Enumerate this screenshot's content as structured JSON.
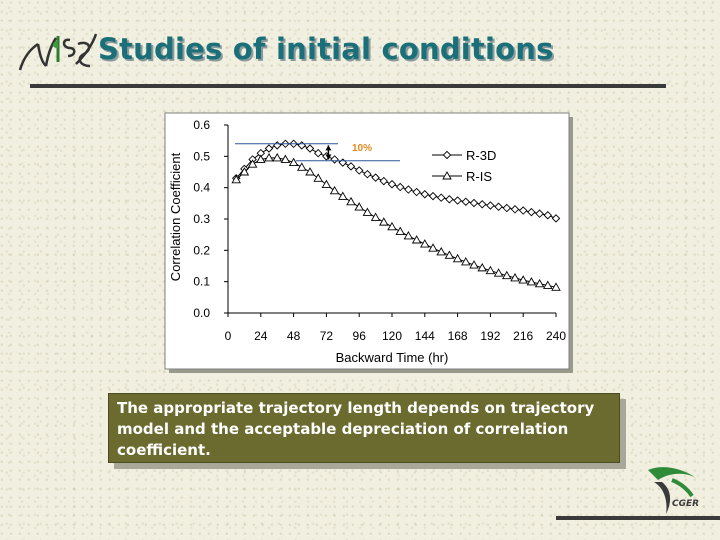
{
  "slide": {
    "title": "Studies of initial conditions",
    "note": "The appropriate trajectory length depends on trajectory model and the acceptable depreciation of correlation coefficient."
  },
  "logos": {
    "top_left": "NIES",
    "bottom_right": "CGER"
  },
  "colors": {
    "title": "#1a6f78",
    "note_box": "#6b6a2f",
    "annotation": "#e08a1e"
  },
  "chart_data": {
    "type": "line",
    "title": "",
    "xlabel": "Backward Time (hr)",
    "ylabel": "Correlation Coefficient",
    "xlim": [
      0,
      240
    ],
    "ylim": [
      0,
      0.6
    ],
    "x_ticks": [
      0,
      24,
      48,
      72,
      96,
      120,
      144,
      168,
      192,
      216,
      240
    ],
    "y_ticks": [
      0.0,
      0.1,
      0.2,
      0.3,
      0.4,
      0.5,
      0.6
    ],
    "y_tick_labels": [
      "0.0",
      "0.1",
      "0.2",
      "0.3",
      "0.4",
      "0.5",
      "0.6"
    ],
    "legend_position": "top-right",
    "grid": false,
    "annotation": "10%",
    "series": [
      {
        "name": "R-3D",
        "marker": "diamond",
        "x": [
          6,
          12,
          18,
          24,
          30,
          36,
          42,
          48,
          54,
          60,
          66,
          72,
          78,
          84,
          90,
          96,
          102,
          108,
          114,
          120,
          126,
          132,
          138,
          144,
          150,
          156,
          162,
          168,
          174,
          180,
          186,
          192,
          198,
          204,
          210,
          216,
          222,
          228,
          234,
          240
        ],
        "y": [
          0.43,
          0.46,
          0.49,
          0.51,
          0.525,
          0.535,
          0.54,
          0.54,
          0.535,
          0.525,
          0.51,
          0.5,
          0.49,
          0.48,
          0.468,
          0.455,
          0.443,
          0.432,
          0.421,
          0.411,
          0.402,
          0.394,
          0.386,
          0.379,
          0.373,
          0.368,
          0.363,
          0.359,
          0.355,
          0.351,
          0.347,
          0.343,
          0.339,
          0.335,
          0.331,
          0.327,
          0.322,
          0.317,
          0.312,
          0.302
        ]
      },
      {
        "name": "R-IS",
        "marker": "triangle",
        "x": [
          6,
          12,
          18,
          24,
          30,
          36,
          42,
          48,
          54,
          60,
          66,
          72,
          78,
          84,
          90,
          96,
          102,
          108,
          114,
          120,
          126,
          132,
          138,
          144,
          150,
          156,
          162,
          168,
          174,
          180,
          186,
          192,
          198,
          204,
          210,
          216,
          222,
          228,
          234,
          240
        ],
        "y": [
          0.425,
          0.45,
          0.475,
          0.49,
          0.495,
          0.495,
          0.49,
          0.48,
          0.465,
          0.45,
          0.43,
          0.41,
          0.39,
          0.372,
          0.355,
          0.338,
          0.321,
          0.305,
          0.29,
          0.275,
          0.26,
          0.246,
          0.233,
          0.22,
          0.207,
          0.195,
          0.184,
          0.173,
          0.163,
          0.153,
          0.144,
          0.135,
          0.127,
          0.119,
          0.112,
          0.105,
          0.099,
          0.093,
          0.088,
          0.082
        ]
      }
    ]
  }
}
